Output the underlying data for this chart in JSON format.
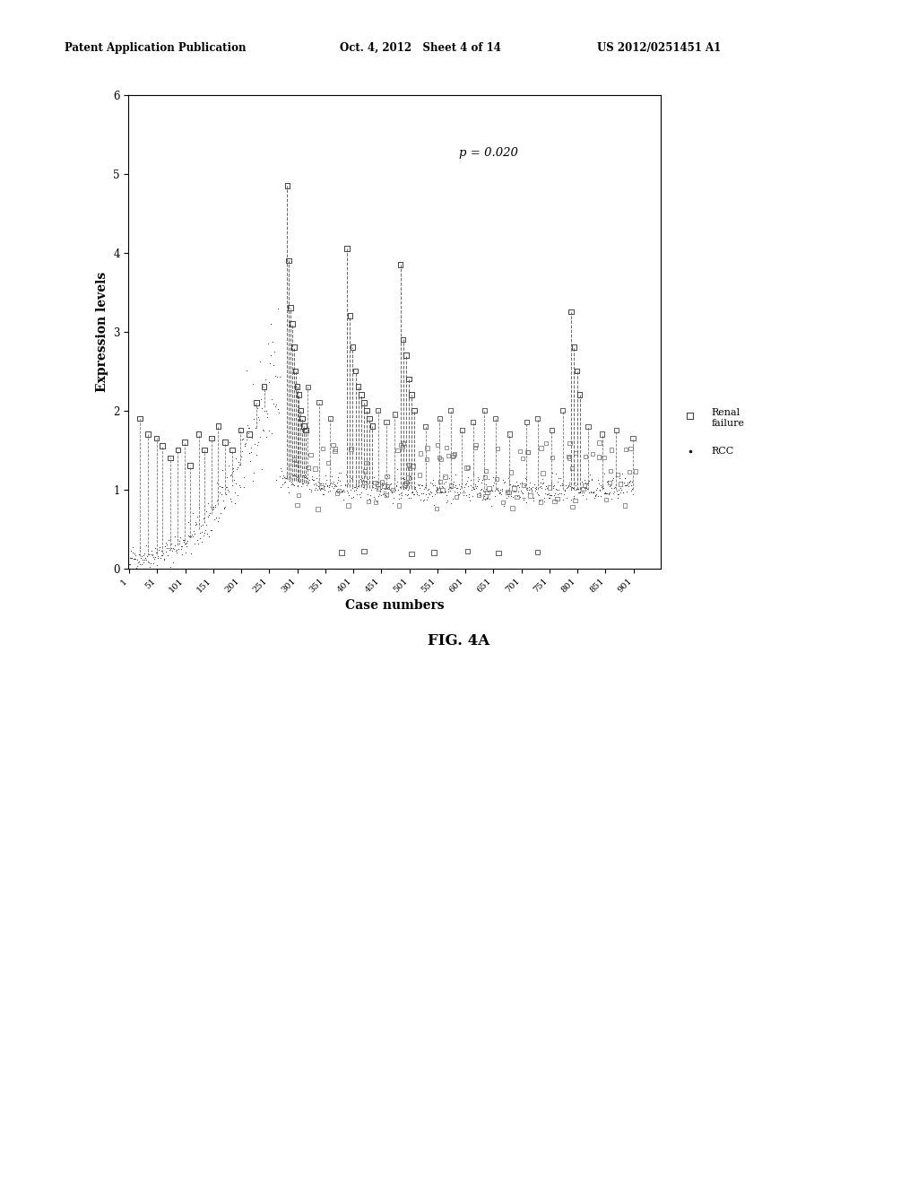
{
  "title": "",
  "xlabel": "Case numbers",
  "ylabel": "Expression levels",
  "ylim": [
    0,
    6
  ],
  "xlim": [
    0,
    950
  ],
  "p_value_text": "p = 0.020",
  "xtick_labels": [
    "1",
    "51",
    "101",
    "151",
    "201",
    "251",
    "301",
    "351",
    "401",
    "451",
    "501",
    "551",
    "601",
    "651",
    "701",
    "751",
    "801",
    "851",
    "901"
  ],
  "xtick_positions": [
    1,
    51,
    101,
    151,
    201,
    251,
    301,
    351,
    401,
    451,
    501,
    551,
    601,
    651,
    701,
    751,
    801,
    851,
    901
  ],
  "ytick_labels": [
    "0",
    "1",
    "2",
    "3",
    "4",
    "5",
    "6"
  ],
  "ytick_positions": [
    0,
    1,
    2,
    3,
    4,
    5,
    6
  ],
  "legend_square_label": "Renal\nfailure",
  "legend_dot_label": "RCC",
  "background_color": "#ffffff",
  "plot_bg_color": "#ffffff",
  "rcc_color": "#1a1a1a",
  "header_text_left": "Patent Application Publication",
  "header_text_mid": "Oct. 4, 2012   Sheet 4 of 14",
  "header_text_right": "US 2012/0251451 A1",
  "figure_label": "FIG. 4A",
  "n_rcc": 900
}
